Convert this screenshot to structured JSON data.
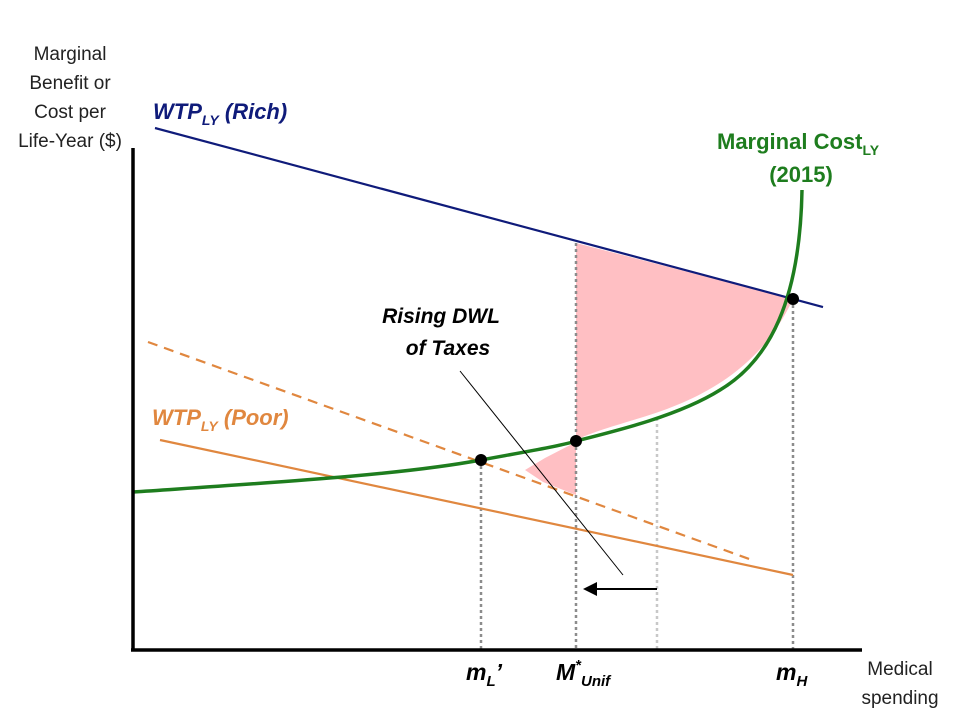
{
  "axes": {
    "y_label_lines": [
      "Marginal",
      "Benefit or",
      "Cost per",
      "Life-Year ($)"
    ],
    "x_label_lines": [
      "Medical",
      "spending"
    ]
  },
  "curves": {
    "wtp_rich": {
      "base": "WTP",
      "sub": "LY",
      "suffix": " (Rich)",
      "color": "#0f1b7a"
    },
    "wtp_poor": {
      "base": "WTP",
      "sub": "LY",
      "suffix": " (Poor)",
      "color": "#e0873f"
    },
    "marginal_cost": {
      "line1_base": "Marginal Cost",
      "line1_sub": "LY",
      "line2": "(2015)",
      "color": "#1e7d1e"
    }
  },
  "annotation": {
    "line1": "Rising DWL",
    "line2": "of Taxes"
  },
  "ticks": {
    "m_l": {
      "base": "m",
      "sub": "L",
      "prime": "’"
    },
    "m_unif": {
      "base": "M",
      "sup": "*",
      "sub": "Unif"
    },
    "m_h": {
      "base": "m",
      "sub": "H"
    }
  },
  "colors": {
    "dwl_fill": "#ffbfc3",
    "axis": "#000000",
    "dotted": "#8c8c8c"
  }
}
